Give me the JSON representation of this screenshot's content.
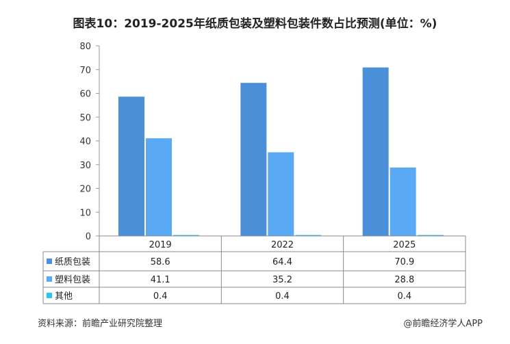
{
  "chart_data": {
    "type": "bar",
    "title": "图表10：2019-2025年纸质包装及塑料包装件数占比预测(单位：%)",
    "categories": [
      "2019",
      "2022",
      "2025"
    ],
    "series": [
      {
        "name": "纸质包装",
        "values": [
          58.6,
          64.4,
          70.9
        ],
        "color": "#4a90d9"
      },
      {
        "name": "塑料包装",
        "values": [
          41.1,
          35.2,
          28.8
        ],
        "color": "#5aa9f5"
      },
      {
        "name": "其他",
        "values": [
          0.4,
          0.4,
          0.4
        ],
        "color": "#2ec4ef"
      }
    ],
    "yticks": [
      0,
      10,
      20,
      30,
      40,
      50,
      60,
      70,
      80
    ],
    "ylim": [
      0,
      80
    ],
    "legend": "data-table",
    "grid": false
  },
  "footer": {
    "source": "资料来源：前瞻产业研究院整理",
    "brand": "@前瞻经济学人APP"
  }
}
